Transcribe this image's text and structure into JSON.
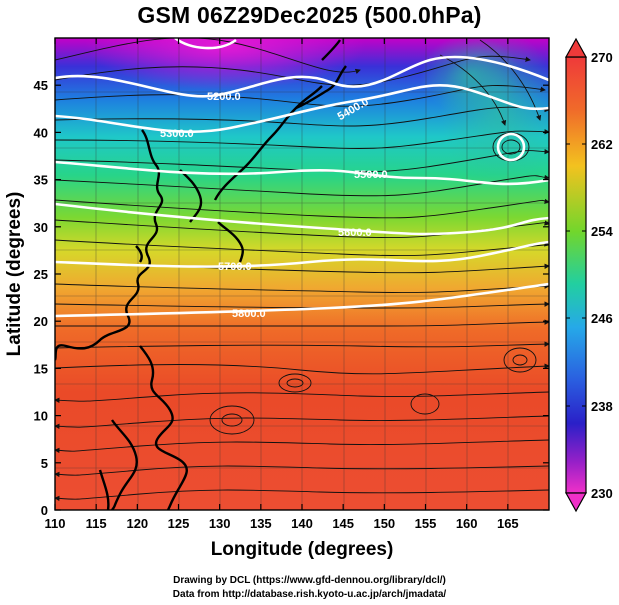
{
  "title": "GSM 06Z29Dec2025 (500.0hPa)",
  "x_axis": {
    "label": "Longitude (degrees)",
    "range": [
      110,
      170
    ],
    "ticks": [
      110,
      115,
      120,
      125,
      130,
      135,
      140,
      145,
      150,
      155,
      160,
      165
    ]
  },
  "y_axis": {
    "label": "Latitude  (degrees)",
    "range": [
      0,
      50
    ],
    "ticks": [
      0,
      5,
      10,
      15,
      20,
      25,
      30,
      35,
      40,
      45
    ]
  },
  "colorbar": {
    "min": 230,
    "max": 270,
    "tick_labels": [
      "270",
      "262",
      "254",
      "246",
      "238",
      "230"
    ]
  },
  "contours": [
    {
      "label": "5200.0"
    },
    {
      "label": "5300.0"
    },
    {
      "label": "5400.0"
    },
    {
      "label": "5500.0"
    },
    {
      "label": "5600.0"
    },
    {
      "label": "5700.0"
    },
    {
      "label": "5800.0"
    }
  ],
  "credits": {
    "line1": "Drawing by DCL (https://www.gfd-dennou.org/library/dcl/)",
    "line2": "Data from http://database.rish.kyoto-u.ac.jp/arch/jmadata/"
  }
}
